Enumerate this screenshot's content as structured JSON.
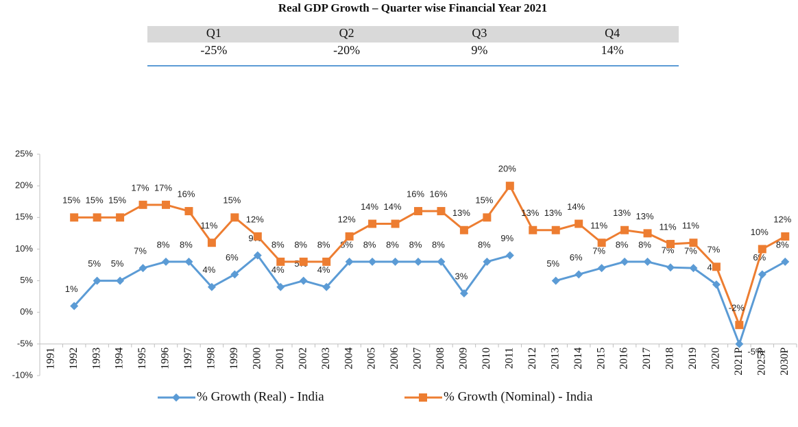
{
  "table": {
    "title": "Real GDP Growth – Quarter wise Financial Year 2021",
    "header": [
      "Q1",
      "Q2",
      "Q3",
      "Q4"
    ],
    "rows": [
      [
        "-25%",
        "-20%",
        "9%",
        "14%"
      ]
    ]
  },
  "chart_data": {
    "type": "line",
    "categories": [
      "1991",
      "1992",
      "1993",
      "1994",
      "1995",
      "1996",
      "1997",
      "1998",
      "1999",
      "2000",
      "2001",
      "2002",
      "2003",
      "2004",
      "2005",
      "2006",
      "2007",
      "2008",
      "2009",
      "2010",
      "2011",
      "2012",
      "2013",
      "2014",
      "2015",
      "2016",
      "2017",
      "2018",
      "2019",
      "2020",
      "2021P",
      "2025P",
      "2030P"
    ],
    "series": [
      {
        "name": "% Growth (Real) - India",
        "color": "#5b9bd5",
        "marker": "diamond",
        "values": [
          null,
          1,
          5,
          5,
          7,
          8,
          8,
          4,
          6,
          9,
          4,
          5,
          4,
          8,
          8,
          8,
          8,
          8,
          3,
          8,
          9,
          null,
          5,
          6,
          7,
          8,
          8,
          7.1,
          7,
          4.4,
          -5,
          6,
          8
        ],
        "value_labels": [
          null,
          "1%",
          "5%",
          "5%",
          "7%",
          "8%",
          "8%",
          "4%",
          "6%",
          "9%",
          "4%",
          "5%",
          "4%",
          "8%",
          "8%",
          "8%",
          "8%",
          "8%",
          "3%",
          "8%",
          "9%",
          null,
          "5%",
          "6%",
          "7%",
          "8%",
          "8%",
          "7%",
          "7%",
          "4%",
          "-5%",
          "6%",
          "8%"
        ]
      },
      {
        "name": "% Growth (Nominal) - India",
        "color": "#ed7d31",
        "marker": "square",
        "values": [
          null,
          15,
          15,
          15,
          17,
          17,
          16,
          11,
          15,
          12,
          8,
          8,
          8,
          12,
          14,
          14,
          16,
          16,
          13,
          15,
          20,
          13,
          13,
          14,
          11,
          13,
          12.5,
          10.8,
          11,
          7.2,
          -2,
          10,
          12
        ],
        "value_labels": [
          null,
          "15%",
          "15%",
          "15%",
          "17%",
          "17%",
          "16%",
          "11%",
          "15%",
          "12%",
          "8%",
          "8%",
          "8%",
          "12%",
          "14%",
          "14%",
          "16%",
          "16%",
          "13%",
          "15%",
          "20%",
          "13%",
          "13%",
          "14%",
          "11%",
          "13%",
          "13%",
          "11%",
          "11%",
          "7%",
          "-2%",
          "10%",
          "12%"
        ]
      }
    ],
    "ylim": [
      -10,
      25
    ],
    "yticks": [
      {
        "value": -10,
        "label": "-10%"
      },
      {
        "value": -5,
        "label": "-5%"
      },
      {
        "value": 0,
        "label": "0%"
      },
      {
        "value": 5,
        "label": "5%"
      },
      {
        "value": 10,
        "label": "10%"
      },
      {
        "value": 15,
        "label": "15%"
      },
      {
        "value": 20,
        "label": "20%"
      },
      {
        "value": 25,
        "label": "25%"
      }
    ],
    "x_axis_at": -5,
    "grid": false,
    "legend": "bottom"
  }
}
